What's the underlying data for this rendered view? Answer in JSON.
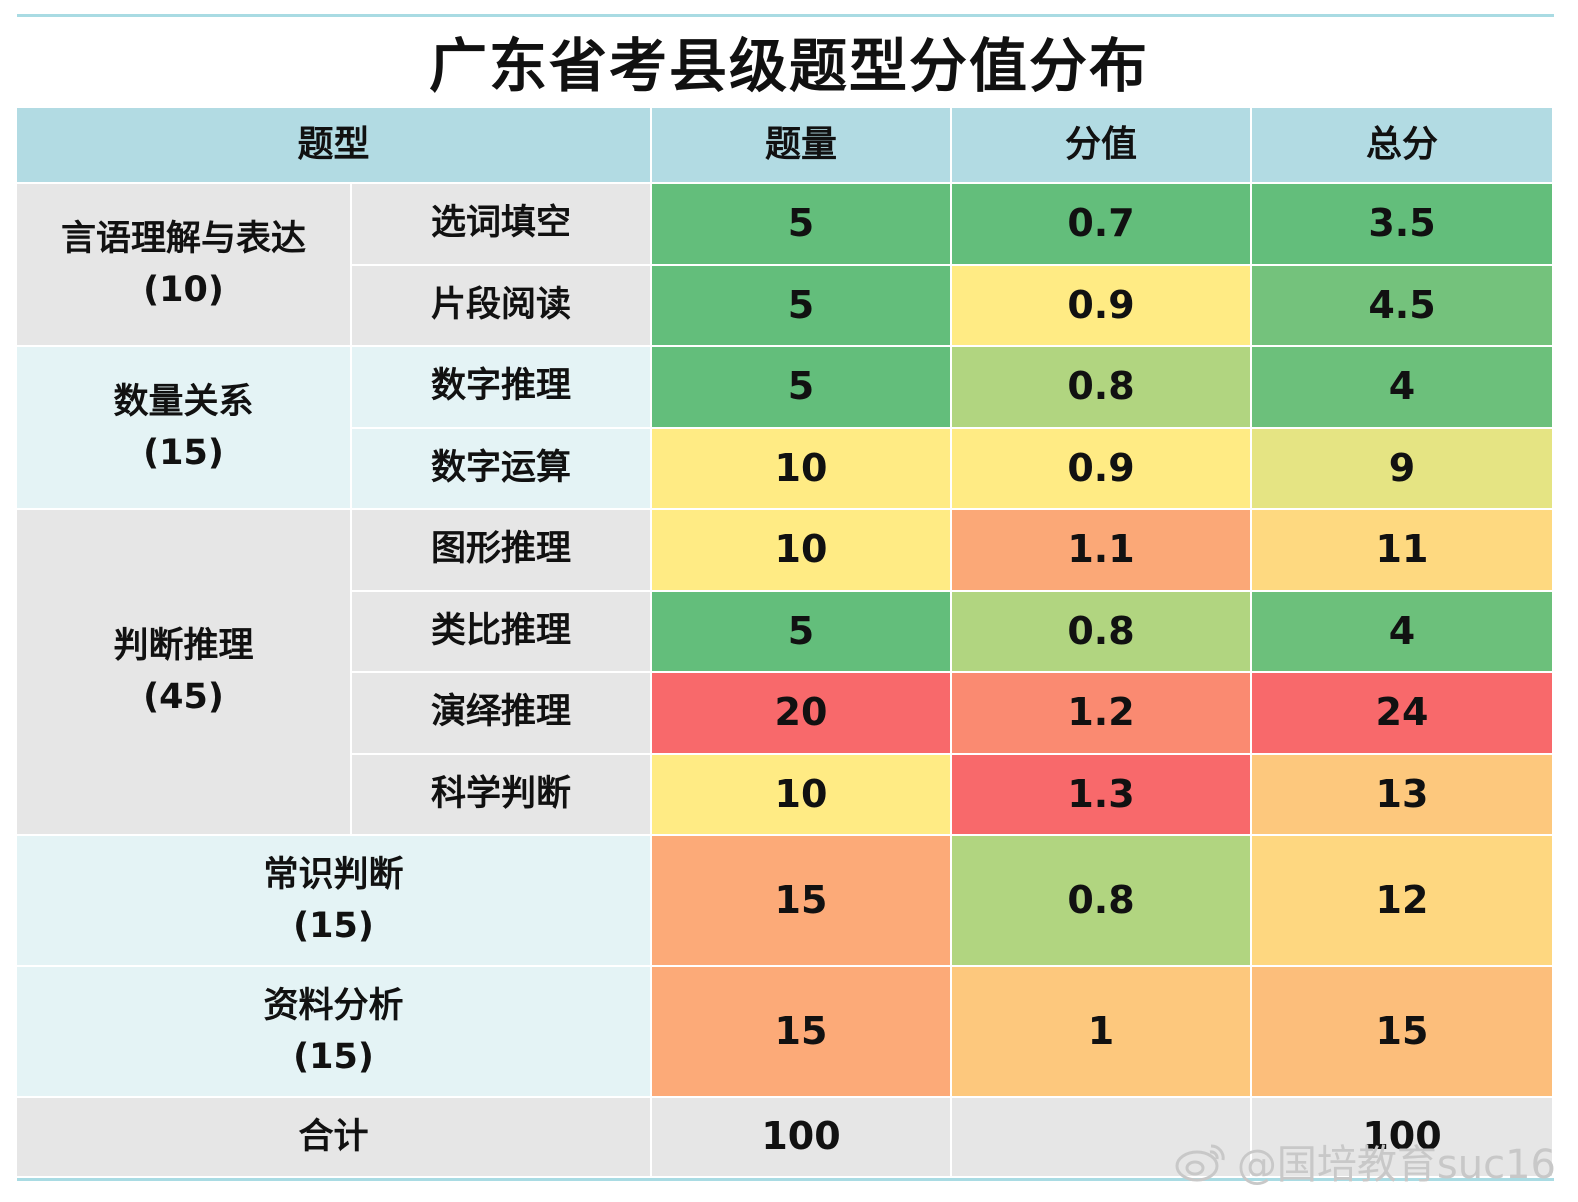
{
  "title": "广东省考县级题型分值分布",
  "headers": {
    "type": "题型",
    "count": "题量",
    "value": "分值",
    "total": "总分"
  },
  "groups": [
    {
      "name": "言语理解与表达",
      "sub": "(10)"
    },
    {
      "name": "数量关系",
      "sub": "(15)"
    },
    {
      "name": "判断推理",
      "sub": "(45)"
    },
    {
      "name": "常识判断",
      "sub": "(15)"
    },
    {
      "name": "资料分析",
      "sub": "(15)"
    }
  ],
  "rows": [
    {
      "label": "选词填空",
      "count": "5",
      "value": "0.7",
      "total": "3.5",
      "colors": [
        "#63be7b",
        "#63be7b",
        "#63be7b"
      ]
    },
    {
      "label": "片段阅读",
      "count": "5",
      "value": "0.9",
      "total": "4.5",
      "colors": [
        "#63be7b",
        "#ffeb84",
        "#74c27c"
      ]
    },
    {
      "label": "数字推理",
      "count": "5",
      "value": "0.8",
      "total": "4",
      "colors": [
        "#63be7b",
        "#b1d580",
        "#6cc07b"
      ]
    },
    {
      "label": "数字运算",
      "count": "10",
      "value": "0.9",
      "total": "9",
      "colors": [
        "#ffeb84",
        "#ffeb84",
        "#e5e483"
      ]
    },
    {
      "label": "图形推理",
      "count": "10",
      "value": "1.1",
      "total": "11",
      "colors": [
        "#ffeb84",
        "#fba877",
        "#fed980"
      ]
    },
    {
      "label": "类比推理",
      "count": "5",
      "value": "0.8",
      "total": "4",
      "colors": [
        "#63be7b",
        "#b1d580",
        "#6cc07b"
      ]
    },
    {
      "label": "演绎推理",
      "count": "20",
      "value": "1.2",
      "total": "24",
      "colors": [
        "#f8696b",
        "#fa8a71",
        "#f8696b"
      ]
    },
    {
      "label": "科学判断",
      "count": "10",
      "value": "1.3",
      "total": "13",
      "colors": [
        "#ffeb84",
        "#f8696b",
        "#fdc87d"
      ]
    },
    {
      "label": "常识判断",
      "count": "15",
      "value": "0.8",
      "total": "12",
      "colors": [
        "#fcaa78",
        "#b1d580",
        "#fed780"
      ]
    },
    {
      "label": "资料分析",
      "count": "15",
      "value": "1",
      "total": "15",
      "colors": [
        "#fcaa78",
        "#fdc87d",
        "#fcbe7b"
      ]
    }
  ],
  "totals": {
    "label": "合计",
    "count": "100",
    "total": "100"
  },
  "watermark": "@国培教育suc16",
  "chart_data": {
    "type": "table",
    "title": "广东省考县级题型分值分布",
    "columns": [
      "题型",
      "题量",
      "分值",
      "总分"
    ],
    "rows": [
      {
        "group": "言语理解与表达(10)",
        "item": "选词填空",
        "count": 5,
        "value": 0.7,
        "total": 3.5
      },
      {
        "group": "言语理解与表达(10)",
        "item": "片段阅读",
        "count": 5,
        "value": 0.9,
        "total": 4.5
      },
      {
        "group": "数量关系(15)",
        "item": "数字推理",
        "count": 5,
        "value": 0.8,
        "total": 4
      },
      {
        "group": "数量关系(15)",
        "item": "数字运算",
        "count": 10,
        "value": 0.9,
        "total": 9
      },
      {
        "group": "判断推理(45)",
        "item": "图形推理",
        "count": 10,
        "value": 1.1,
        "total": 11
      },
      {
        "group": "判断推理(45)",
        "item": "类比推理",
        "count": 5,
        "value": 0.8,
        "total": 4
      },
      {
        "group": "判断推理(45)",
        "item": "演绎推理",
        "count": 20,
        "value": 1.2,
        "total": 24
      },
      {
        "group": "判断推理(45)",
        "item": "科学判断",
        "count": 10,
        "value": 1.3,
        "total": 13
      },
      {
        "group": "常识判断(15)",
        "item": "常识判断",
        "count": 15,
        "value": 0.8,
        "total": 12
      },
      {
        "group": "资料分析(15)",
        "item": "资料分析",
        "count": 15,
        "value": 1,
        "total": 15
      }
    ],
    "sum": {
      "label": "合计",
      "count": 100,
      "total": 100
    }
  }
}
